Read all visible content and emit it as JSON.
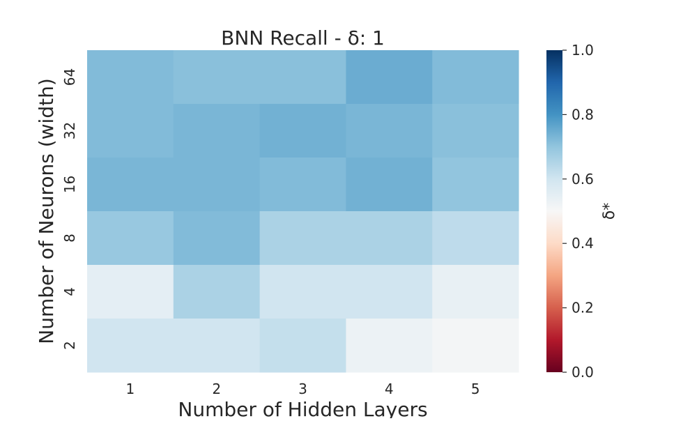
{
  "chart_data": {
    "type": "heatmap",
    "title": "BNN Recall - δ: 1",
    "xlabel": "Number of Hidden Layers",
    "ylabel": "Number of Neurons (width)",
    "x_categories": [
      "1",
      "2",
      "3",
      "4",
      "5"
    ],
    "y_categories": [
      "64",
      "32",
      "16",
      "8",
      "4",
      "2"
    ],
    "values": [
      [
        0.72,
        0.71,
        0.71,
        0.75,
        0.72
      ],
      [
        0.72,
        0.73,
        0.74,
        0.73,
        0.71
      ],
      [
        0.73,
        0.73,
        0.72,
        0.74,
        0.7
      ],
      [
        0.69,
        0.72,
        0.66,
        0.66,
        0.63
      ],
      [
        0.55,
        0.66,
        0.6,
        0.6,
        0.54
      ],
      [
        0.6,
        0.6,
        0.62,
        0.53,
        0.51
      ]
    ],
    "colorbar": {
      "label": "δ*",
      "range": [
        0.0,
        1.0
      ],
      "ticks": [
        "0.0",
        "0.2",
        "0.4",
        "0.6",
        "0.8",
        "1.0"
      ],
      "colormap": "RdBu",
      "stops": [
        "#67001f",
        "#b2182b",
        "#d6604d",
        "#f4a582",
        "#fddbc7",
        "#f7f7f7",
        "#d1e5f0",
        "#92c5de",
        "#4393c3",
        "#2166ac",
        "#053061"
      ]
    },
    "grid": false
  }
}
